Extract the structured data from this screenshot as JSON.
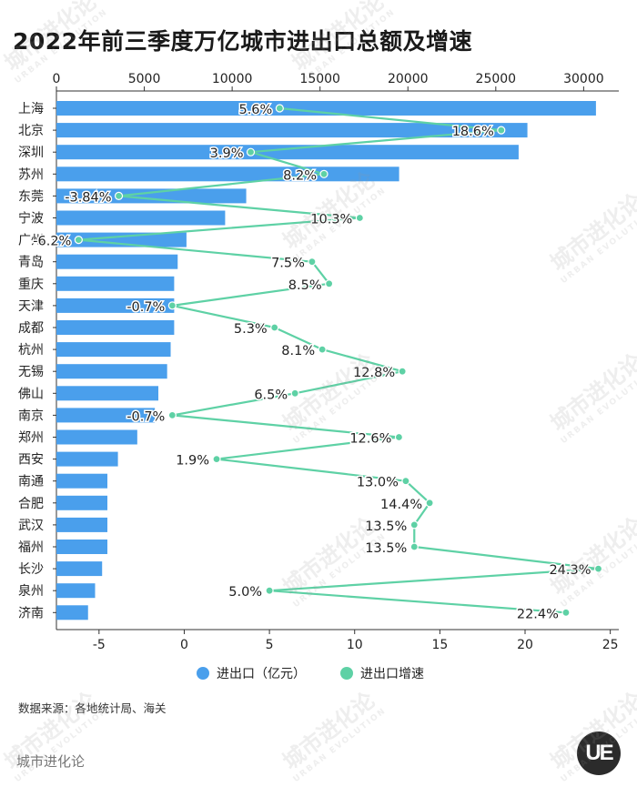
{
  "title": "2022年前三季度万亿城市进出口总额及增速",
  "chart_data": {
    "type": "bar+line",
    "categories": [
      "上海",
      "北京",
      "深圳",
      "苏州",
      "东莞",
      "宁波",
      "广州",
      "青岛",
      "重庆",
      "天津",
      "成都",
      "杭州",
      "无锡",
      "佛山",
      "南京",
      "郑州",
      "西安",
      "南通",
      "合肥",
      "武汉",
      "福州",
      "长沙",
      "泉州",
      "济南"
    ],
    "series": [
      {
        "name": "进出口（亿元）",
        "type": "bar",
        "axis": "top",
        "color": "#4a9fec",
        "values": [
          30700,
          26800,
          26300,
          19500,
          10800,
          9600,
          7400,
          6900,
          6700,
          6700,
          6700,
          6500,
          6300,
          5800,
          5600,
          4600,
          3500,
          2900,
          2900,
          2900,
          2900,
          2600,
          2200,
          1800
        ]
      },
      {
        "name": "进出口增速",
        "type": "line",
        "axis": "bottom",
        "color": "#5ed1a5",
        "values": [
          5.6,
          18.6,
          3.9,
          8.2,
          -3.84,
          10.3,
          -6.2,
          7.5,
          8.5,
          -0.7,
          5.3,
          8.1,
          12.8,
          6.5,
          -0.7,
          12.6,
          1.9,
          13.0,
          14.4,
          13.5,
          13.5,
          24.3,
          5.0,
          22.4
        ],
        "labels": [
          "5.6%",
          "18.6%",
          "3.9%",
          "8.2%",
          "-3.84%",
          "10.3%",
          "-6.2%",
          "7.5%",
          "8.5%",
          "-0.7%",
          "5.3%",
          "8.1%",
          "12.8%",
          "6.5%",
          "-0.7%",
          "12.6%",
          "1.9%",
          "13.0%",
          "14.4%",
          "13.5%",
          "13.5%",
          "24.3%",
          "5.0%",
          "22.4%"
        ]
      }
    ],
    "top_axis": {
      "range": [
        0,
        32000
      ],
      "ticks": [
        0,
        5000,
        10000,
        15000,
        20000,
        25000,
        30000
      ]
    },
    "bottom_axis": {
      "range": [
        -7.5,
        25.5
      ],
      "ticks": [
        -5,
        0,
        5,
        10,
        15,
        20,
        25
      ]
    },
    "grid": false,
    "legend_position": "bottom"
  },
  "legend": {
    "bar_label": "进出口（亿元）",
    "line_label": "进出口增速"
  },
  "source": "数据来源：各地统计局、海关",
  "brand": "城市进化论",
  "logo_text": "UE",
  "watermark": {
    "text": "城市进化论",
    "sub": "URBAN EVOLUTION"
  }
}
